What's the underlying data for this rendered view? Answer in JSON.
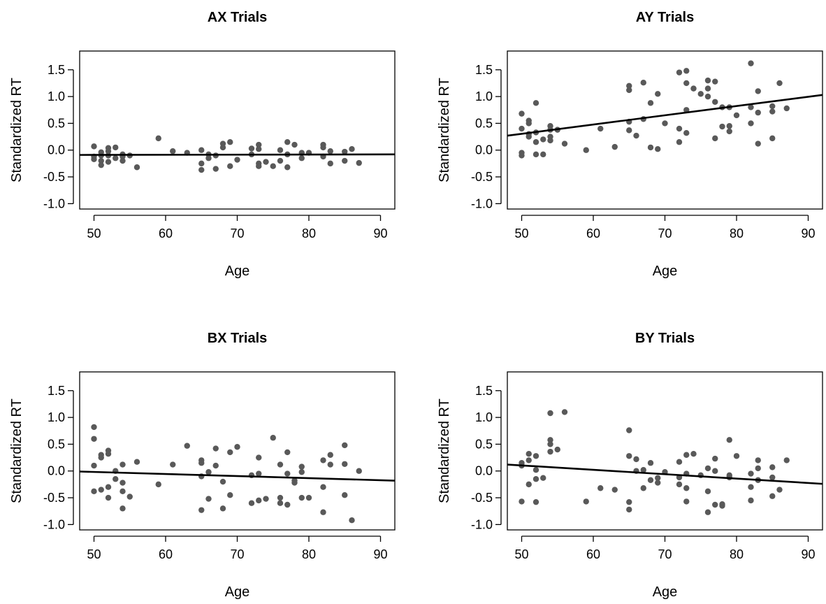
{
  "chart_data": [
    {
      "type": "scatter",
      "title": "AX Trials",
      "xlabel": "Age",
      "ylabel": "Standardized RT",
      "xlim": [
        48,
        92
      ],
      "ylim": [
        -1.1,
        1.85
      ],
      "xticks": [
        50,
        60,
        70,
        80,
        90
      ],
      "yticks": [
        -1.0,
        -0.5,
        0.0,
        0.5,
        1.0,
        1.5
      ],
      "xtick_labels": [
        "50",
        "60",
        "70",
        "80",
        "90"
      ],
      "ytick_labels": [
        "-1.0",
        "-0.5",
        "0.0",
        "0.5",
        "1.0",
        "1.5"
      ],
      "grid": false,
      "regression_line": {
        "x": [
          48,
          92
        ],
        "y": [
          -0.09,
          -0.08
        ]
      },
      "points": [
        [
          50,
          0.07
        ],
        [
          50,
          -0.12
        ],
        [
          50,
          -0.17
        ],
        [
          51,
          -0.04
        ],
        [
          51,
          -0.1
        ],
        [
          51,
          -0.2
        ],
        [
          51,
          -0.28
        ],
        [
          52,
          0.04
        ],
        [
          52,
          -0.02
        ],
        [
          52,
          -0.1
        ],
        [
          52,
          -0.22
        ],
        [
          53,
          0.05
        ],
        [
          53,
          -0.15
        ],
        [
          54,
          -0.08
        ],
        [
          54,
          -0.12
        ],
        [
          54,
          -0.2
        ],
        [
          55,
          -0.1
        ],
        [
          56,
          -0.32
        ],
        [
          59,
          0.22
        ],
        [
          61,
          -0.02
        ],
        [
          63,
          -0.05
        ],
        [
          65,
          0.0
        ],
        [
          65,
          -0.25
        ],
        [
          65,
          -0.37
        ],
        [
          66,
          -0.08
        ],
        [
          66,
          -0.15
        ],
        [
          67,
          -0.1
        ],
        [
          67,
          -0.35
        ],
        [
          68,
          0.12
        ],
        [
          68,
          0.05
        ],
        [
          69,
          0.15
        ],
        [
          69,
          -0.3
        ],
        [
          70,
          -0.18
        ],
        [
          72,
          0.03
        ],
        [
          72,
          -0.08
        ],
        [
          73,
          0.1
        ],
        [
          73,
          0.02
        ],
        [
          73,
          -0.25
        ],
        [
          73,
          -0.3
        ],
        [
          74,
          -0.22
        ],
        [
          75,
          -0.3
        ],
        [
          76,
          0.0
        ],
        [
          76,
          -0.2
        ],
        [
          77,
          0.15
        ],
        [
          77,
          -0.08
        ],
        [
          77,
          -0.32
        ],
        [
          78,
          0.1
        ],
        [
          79,
          -0.05
        ],
        [
          79,
          -0.15
        ],
        [
          80,
          -0.05
        ],
        [
          82,
          0.1
        ],
        [
          82,
          0.05
        ],
        [
          82,
          -0.12
        ],
        [
          83,
          -0.02
        ],
        [
          83,
          -0.25
        ],
        [
          85,
          -0.03
        ],
        [
          85,
          -0.2
        ],
        [
          86,
          0.02
        ],
        [
          87,
          -0.24
        ]
      ]
    },
    {
      "type": "scatter",
      "title": "AY Trials",
      "xlabel": "Age",
      "ylabel": "Standardized RT",
      "xlim": [
        48,
        92
      ],
      "ylim": [
        -1.1,
        1.85
      ],
      "xticks": [
        50,
        60,
        70,
        80,
        90
      ],
      "yticks": [
        -1.0,
        -0.5,
        0.0,
        0.5,
        1.0,
        1.5
      ],
      "xtick_labels": [
        "50",
        "60",
        "70",
        "80",
        "90"
      ],
      "ytick_labels": [
        "-1.0",
        "-0.5",
        "0.0",
        "0.5",
        "1.0",
        "1.5"
      ],
      "grid": false,
      "regression_line": {
        "x": [
          48,
          92
        ],
        "y": [
          0.27,
          1.03
        ]
      },
      "points": [
        [
          50,
          0.68
        ],
        [
          50,
          0.4
        ],
        [
          50,
          -0.05
        ],
        [
          50,
          -0.1
        ],
        [
          51,
          0.55
        ],
        [
          51,
          0.5
        ],
        [
          51,
          0.25
        ],
        [
          51,
          0.3
        ],
        [
          52,
          0.88
        ],
        [
          52,
          0.33
        ],
        [
          52,
          0.15
        ],
        [
          52,
          -0.08
        ],
        [
          53,
          0.2
        ],
        [
          53,
          -0.08
        ],
        [
          54,
          0.45
        ],
        [
          54,
          0.38
        ],
        [
          54,
          0.25
        ],
        [
          54,
          0.18
        ],
        [
          55,
          0.38
        ],
        [
          56,
          0.12
        ],
        [
          59,
          0.0
        ],
        [
          61,
          0.4
        ],
        [
          63,
          0.06
        ],
        [
          65,
          1.2
        ],
        [
          65,
          1.12
        ],
        [
          65,
          0.53
        ],
        [
          65,
          0.37
        ],
        [
          66,
          0.27
        ],
        [
          67,
          1.26
        ],
        [
          67,
          0.58
        ],
        [
          68,
          0.88
        ],
        [
          68,
          0.05
        ],
        [
          69,
          1.05
        ],
        [
          69,
          0.02
        ],
        [
          70,
          0.5
        ],
        [
          72,
          1.45
        ],
        [
          72,
          0.4
        ],
        [
          72,
          0.15
        ],
        [
          73,
          1.48
        ],
        [
          73,
          1.25
        ],
        [
          73,
          0.75
        ],
        [
          73,
          0.32
        ],
        [
          74,
          1.15
        ],
        [
          75,
          1.05
        ],
        [
          76,
          1.3
        ],
        [
          76,
          1.15
        ],
        [
          76,
          1.0
        ],
        [
          77,
          1.28
        ],
        [
          77,
          0.9
        ],
        [
          77,
          0.22
        ],
        [
          78,
          0.8
        ],
        [
          78,
          0.44
        ],
        [
          79,
          0.8
        ],
        [
          79,
          0.45
        ],
        [
          79,
          0.35
        ],
        [
          80,
          0.65
        ],
        [
          82,
          1.62
        ],
        [
          82,
          0.8
        ],
        [
          82,
          0.5
        ],
        [
          83,
          1.1
        ],
        [
          83,
          0.7
        ],
        [
          83,
          0.12
        ],
        [
          85,
          0.82
        ],
        [
          85,
          0.72
        ],
        [
          85,
          0.22
        ],
        [
          86,
          1.25
        ],
        [
          87,
          0.78
        ]
      ]
    },
    {
      "type": "scatter",
      "title": "BX Trials",
      "xlabel": "Age",
      "ylabel": "Standardized RT",
      "xlim": [
        48,
        92
      ],
      "ylim": [
        -1.1,
        1.85
      ],
      "xticks": [
        50,
        60,
        70,
        80,
        90
      ],
      "yticks": [
        -1.0,
        -0.5,
        0.0,
        0.5,
        1.0,
        1.5
      ],
      "xtick_labels": [
        "50",
        "60",
        "70",
        "80",
        "90"
      ],
      "ytick_labels": [
        "-1.0",
        "-0.5",
        "0.0",
        "0.5",
        "1.0",
        "1.5"
      ],
      "grid": false,
      "regression_line": {
        "x": [
          48,
          92
        ],
        "y": [
          -0.01,
          -0.18
        ]
      },
      "points": [
        [
          50,
          0.82
        ],
        [
          50,
          0.6
        ],
        [
          50,
          0.1
        ],
        [
          50,
          -0.38
        ],
        [
          51,
          0.3
        ],
        [
          51,
          0.25
        ],
        [
          51,
          -0.35
        ],
        [
          52,
          0.38
        ],
        [
          52,
          0.32
        ],
        [
          52,
          -0.3
        ],
        [
          52,
          -0.5
        ],
        [
          53,
          0.0
        ],
        [
          53,
          -0.15
        ],
        [
          54,
          0.12
        ],
        [
          54,
          -0.22
        ],
        [
          54,
          -0.38
        ],
        [
          54,
          -0.7
        ],
        [
          55,
          -0.48
        ],
        [
          56,
          0.17
        ],
        [
          59,
          -0.25
        ],
        [
          61,
          0.12
        ],
        [
          63,
          0.47
        ],
        [
          65,
          0.2
        ],
        [
          65,
          0.15
        ],
        [
          65,
          -0.1
        ],
        [
          65,
          -0.73
        ],
        [
          66,
          -0.02
        ],
        [
          66,
          -0.52
        ],
        [
          67,
          0.42
        ],
        [
          67,
          0.1
        ],
        [
          68,
          -0.2
        ],
        [
          68,
          -0.7
        ],
        [
          69,
          0.35
        ],
        [
          69,
          -0.45
        ],
        [
          70,
          0.45
        ],
        [
          72,
          -0.08
        ],
        [
          72,
          -0.6
        ],
        [
          73,
          0.25
        ],
        [
          73,
          -0.05
        ],
        [
          73,
          -0.55
        ],
        [
          74,
          -0.52
        ],
        [
          75,
          0.62
        ],
        [
          76,
          0.12
        ],
        [
          76,
          -0.5
        ],
        [
          76,
          -0.6
        ],
        [
          77,
          0.35
        ],
        [
          77,
          -0.05
        ],
        [
          77,
          -0.63
        ],
        [
          78,
          -0.18
        ],
        [
          78,
          -0.22
        ],
        [
          79,
          0.08
        ],
        [
          79,
          -0.02
        ],
        [
          79,
          -0.5
        ],
        [
          80,
          -0.5
        ],
        [
          82,
          0.2
        ],
        [
          82,
          -0.3
        ],
        [
          82,
          -0.77
        ],
        [
          83,
          0.3
        ],
        [
          83,
          0.12
        ],
        [
          85,
          0.48
        ],
        [
          85,
          0.13
        ],
        [
          85,
          -0.45
        ],
        [
          86,
          -0.92
        ],
        [
          87,
          0.0
        ]
      ]
    },
    {
      "type": "scatter",
      "title": "BY Trials",
      "xlabel": "Age",
      "ylabel": "Standardized RT",
      "xlim": [
        48,
        92
      ],
      "ylim": [
        -1.1,
        1.85
      ],
      "xticks": [
        50,
        60,
        70,
        80,
        90
      ],
      "yticks": [
        -1.0,
        -0.5,
        0.0,
        0.5,
        1.0,
        1.5
      ],
      "xtick_labels": [
        "50",
        "60",
        "70",
        "80",
        "90"
      ],
      "ytick_labels": [
        "-1.0",
        "-0.5",
        "0.0",
        "0.5",
        "1.0",
        "1.5"
      ],
      "grid": false,
      "regression_line": {
        "x": [
          48,
          92
        ],
        "y": [
          0.12,
          -0.24
        ]
      },
      "points": [
        [
          50,
          0.15
        ],
        [
          50,
          0.1
        ],
        [
          50,
          -0.57
        ],
        [
          51,
          0.32
        ],
        [
          51,
          0.2
        ],
        [
          51,
          -0.25
        ],
        [
          52,
          0.28
        ],
        [
          52,
          0.02
        ],
        [
          52,
          -0.15
        ],
        [
          52,
          -0.58
        ],
        [
          53,
          -0.13
        ],
        [
          54,
          1.08
        ],
        [
          54,
          0.58
        ],
        [
          54,
          0.5
        ],
        [
          54,
          0.36
        ],
        [
          55,
          0.4
        ],
        [
          56,
          1.1
        ],
        [
          59,
          -0.57
        ],
        [
          61,
          -0.32
        ],
        [
          63,
          -0.35
        ],
        [
          65,
          0.76
        ],
        [
          65,
          0.28
        ],
        [
          65,
          -0.58
        ],
        [
          65,
          -0.72
        ],
        [
          66,
          0.22
        ],
        [
          66,
          0.0
        ],
        [
          67,
          0.02
        ],
        [
          67,
          -0.32
        ],
        [
          68,
          0.15
        ],
        [
          68,
          -0.17
        ],
        [
          69,
          -0.13
        ],
        [
          69,
          -0.22
        ],
        [
          70,
          -0.02
        ],
        [
          72,
          0.17
        ],
        [
          72,
          -0.12
        ],
        [
          72,
          -0.25
        ],
        [
          73,
          0.3
        ],
        [
          73,
          -0.05
        ],
        [
          73,
          -0.32
        ],
        [
          73,
          -0.57
        ],
        [
          74,
          0.32
        ],
        [
          75,
          -0.08
        ],
        [
          76,
          0.05
        ],
        [
          76,
          -0.38
        ],
        [
          76,
          -0.77
        ],
        [
          77,
          0.23
        ],
        [
          77,
          0.0
        ],
        [
          77,
          -0.63
        ],
        [
          78,
          -0.62
        ],
        [
          78,
          -0.65
        ],
        [
          79,
          0.58
        ],
        [
          79,
          -0.08
        ],
        [
          79,
          -0.12
        ],
        [
          80,
          0.28
        ],
        [
          82,
          -0.05
        ],
        [
          82,
          -0.3
        ],
        [
          82,
          -0.55
        ],
        [
          83,
          0.2
        ],
        [
          83,
          0.05
        ],
        [
          83,
          -0.17
        ],
        [
          85,
          0.07
        ],
        [
          85,
          -0.12
        ],
        [
          85,
          -0.47
        ],
        [
          86,
          -0.35
        ],
        [
          87,
          0.2
        ]
      ]
    }
  ]
}
